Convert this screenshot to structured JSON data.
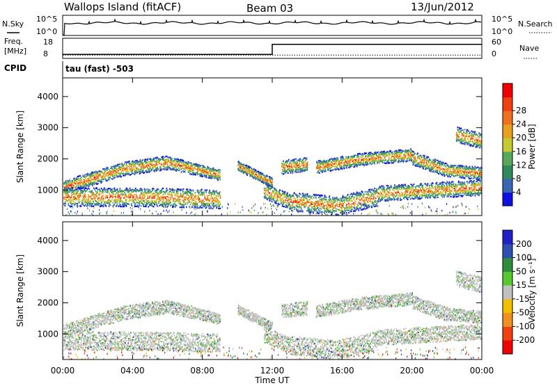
{
  "header": {
    "station": "Wallops Island (fitACF)",
    "beam": "Beam 03",
    "date": "13/Jun/2012"
  },
  "strip_labels": {
    "nsky": "N.Sky",
    "nsearch": "N.Search",
    "freq_line1": "Freq.",
    "freq_line2": "[MHz]",
    "nave": "Nave",
    "cpid": "CPID",
    "cpid_value": "tau (fast) -503"
  },
  "chart_data": [
    {
      "type": "line",
      "name": "noise-strip",
      "left_axis_ticks": [
        "10^5",
        "10^0"
      ],
      "right_axis_ticks": [
        "10^5",
        "10^0"
      ],
      "series": [
        {
          "name": "N.Sky",
          "style": "solid"
        },
        {
          "name": "N.Search",
          "style": "dotted"
        }
      ]
    },
    {
      "type": "line",
      "name": "freq-nave-strip",
      "left_axis_ticks": [
        "18",
        "8"
      ],
      "right_axis_ticks": [
        "60",
        "0"
      ],
      "x": [
        0,
        12,
        12,
        24
      ],
      "freq_values": [
        10,
        10,
        15,
        15
      ],
      "nave_values": [
        10,
        10,
        10,
        10
      ],
      "freq_ylim": [
        8,
        18
      ],
      "nave_ylim": [
        0,
        60
      ]
    },
    {
      "type": "heatmap",
      "name": "power-panel",
      "ylabel": "Slant Range [km]",
      "yticks": [
        "1000",
        "2000",
        "3000",
        "4000"
      ],
      "ylim": [
        180,
        4600
      ],
      "xlim": [
        0,
        24
      ],
      "colorbar_label": "Power [dB]",
      "colorbar_ticks": [
        "4",
        "8",
        "12",
        "16",
        "20",
        "24",
        "28"
      ],
      "colorbar_colors": [
        "#1010e0",
        "#3a66b4",
        "#2f8a5a",
        "#5aa85a",
        "#c8c832",
        "#e8a020",
        "#f07020",
        "#f04010",
        "#f00000"
      ]
    },
    {
      "type": "heatmap",
      "name": "velocity-panel",
      "ylabel": "Slant Range [km]",
      "yticks": [
        "1000",
        "2000",
        "3000",
        "4000"
      ],
      "ylim": [
        180,
        4600
      ],
      "xlim": [
        0,
        24
      ],
      "colorbar_label": "Velocity [m s⁻¹]",
      "colorbar_ticks": [
        "200",
        "100",
        "50",
        "15",
        "-15",
        "-50",
        "-100",
        "-200"
      ],
      "colorbar_colors": [
        "#2020c8",
        "#2f4fb0",
        "#2e8c3c",
        "#58c830",
        "#c0c0c0",
        "#f0c000",
        "#f09020",
        "#f04010",
        "#f00000"
      ]
    }
  ],
  "x_axis": {
    "ticks": [
      "00:00",
      "04:00",
      "08:00",
      "12:00",
      "16:00",
      "20:00",
      "00:00"
    ],
    "label": "Time UT"
  },
  "data_bands": [
    {
      "from": 0,
      "to": 3.5,
      "r0": 1100,
      "r1": 1700,
      "w": 220
    },
    {
      "from": 3.5,
      "to": 6,
      "r0": 1700,
      "r1": 1900,
      "w": 220
    },
    {
      "from": 6,
      "to": 7.5,
      "r0": 1900,
      "r1": 1700,
      "w": 200
    },
    {
      "from": 7.5,
      "to": 9,
      "r0": 1700,
      "r1": 1500,
      "w": 180
    },
    {
      "from": 10,
      "to": 12,
      "r0": 1800,
      "r1": 1250,
      "w": 150
    },
    {
      "from": 12.5,
      "to": 14,
      "r0": 1750,
      "r1": 1850,
      "w": 220
    },
    {
      "from": 14.5,
      "to": 17,
      "r0": 1750,
      "r1": 2000,
      "w": 200
    },
    {
      "from": 17,
      "to": 20,
      "r0": 2000,
      "r1": 2150,
      "w": 200
    },
    {
      "from": 20,
      "to": 22,
      "r0": 2050,
      "r1": 1650,
      "w": 220
    },
    {
      "from": 22,
      "to": 24,
      "r0": 1650,
      "r1": 1550,
      "w": 200
    },
    {
      "from": 0,
      "to": 6,
      "r0": 800,
      "r1": 780,
      "w": 300
    },
    {
      "from": 6,
      "to": 9,
      "r0": 780,
      "r1": 720,
      "w": 300
    },
    {
      "from": 11.5,
      "to": 13,
      "r0": 1000,
      "r1": 650,
      "w": 250
    },
    {
      "from": 13,
      "to": 16,
      "r0": 650,
      "r1": 500,
      "w": 300
    },
    {
      "from": 16,
      "to": 18,
      "r0": 550,
      "r1": 800,
      "w": 300
    },
    {
      "from": 18,
      "to": 24,
      "r0": 900,
      "r1": 1100,
      "w": 250
    },
    {
      "from": 22.5,
      "to": 24,
      "r0": 2800,
      "r1": 2600,
      "w": 250
    }
  ]
}
